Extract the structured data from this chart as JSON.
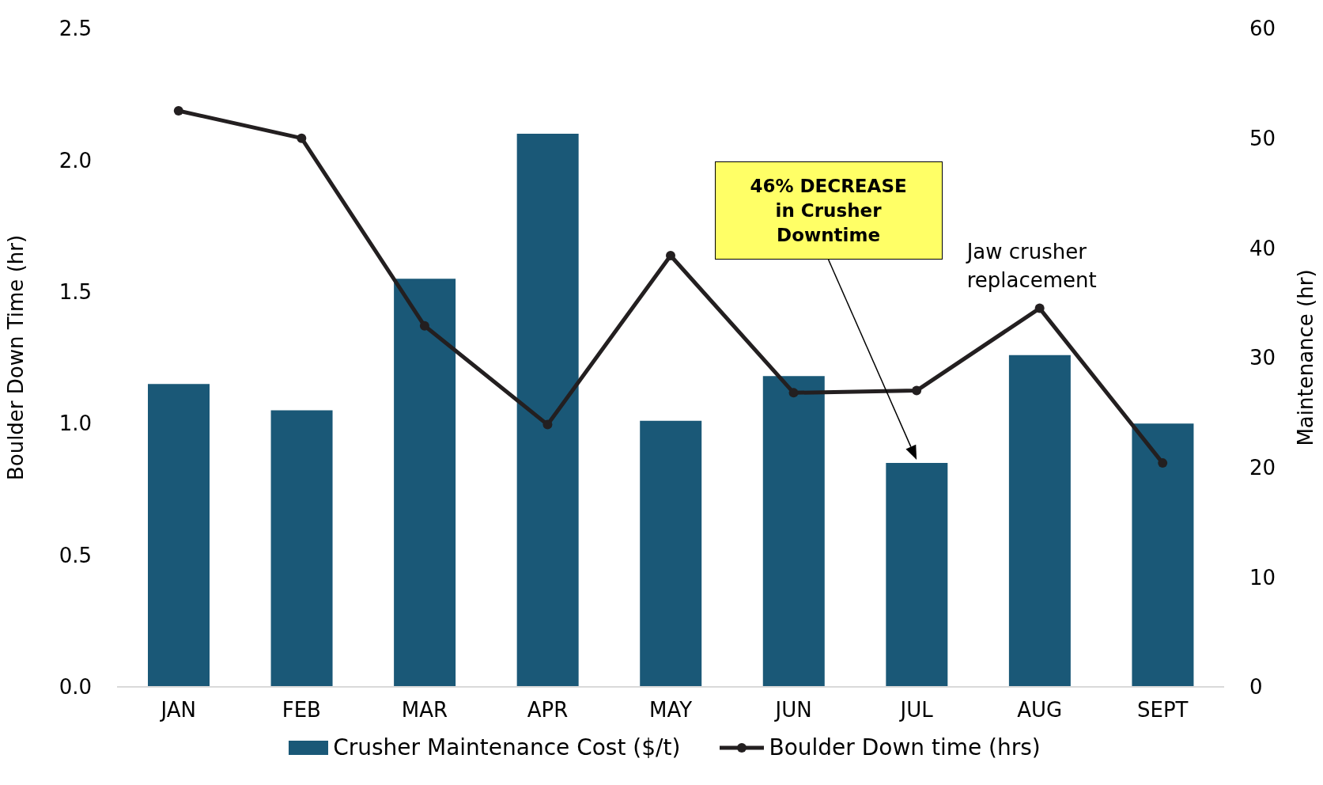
{
  "chart_data": {
    "type": "bar",
    "categories": [
      "JAN",
      "FEB",
      "MAR",
      "APR",
      "MAY",
      "JUN",
      "JUL",
      "AUG",
      "SEPT"
    ],
    "series": [
      {
        "name": "Crusher Maintenance Cost ($/t)",
        "color": "#1a5877",
        "values": [
          1.15,
          1.05,
          1.55,
          2.1,
          1.01,
          1.18,
          0.85,
          1.26,
          1.0
        ]
      },
      {
        "name": "Boulder Down time (hrs)",
        "type": "line",
        "axis": "y2",
        "color": "#231f20",
        "values": [
          52.5,
          50,
          32.9,
          23.9,
          39.3,
          26.8,
          27.0,
          34.5,
          20.4
        ]
      }
    ],
    "ylabel": "Boulder Down Time (hr)",
    "y2label": "Maintenance  (hr)",
    "ylim": [
      0,
      2.5
    ],
    "yticks": [
      {
        "value": 0,
        "label": "0.0"
      },
      {
        "value": 0.5,
        "label": "0.5"
      },
      {
        "value": 1,
        "label": "1.0"
      },
      {
        "value": 1.5,
        "label": "1.5"
      },
      {
        "value": 2,
        "label": "2.0"
      },
      {
        "value": 2.5,
        "label": "2.5"
      }
    ],
    "y2lim": [
      0,
      60
    ],
    "y2ticks": [
      0,
      10,
      20,
      30,
      40,
      50,
      60
    ],
    "annotations": [
      "46% DECREASE in Crusher Downtime",
      "Jaw crusher replacement"
    ],
    "legend": "bottom",
    "marker": "circle",
    "grid": false
  }
}
